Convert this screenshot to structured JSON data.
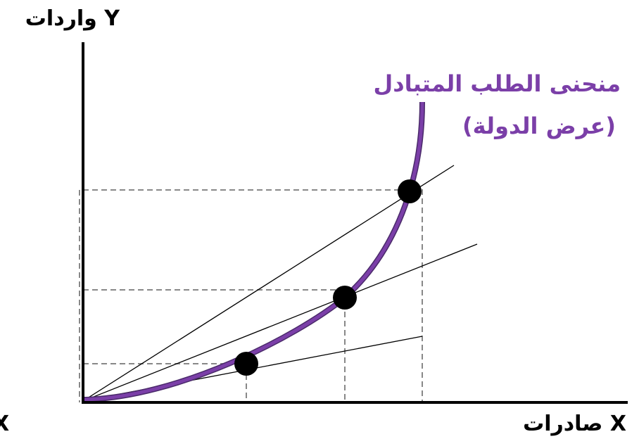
{
  "axes": {
    "y_label": "Y واردات",
    "x_label": "X صادرات",
    "corner_label": "X"
  },
  "curve": {
    "label_lines": [
      "منحنى الطلب المتبادل",
      "(عرض الدولة)"
    ]
  }
}
